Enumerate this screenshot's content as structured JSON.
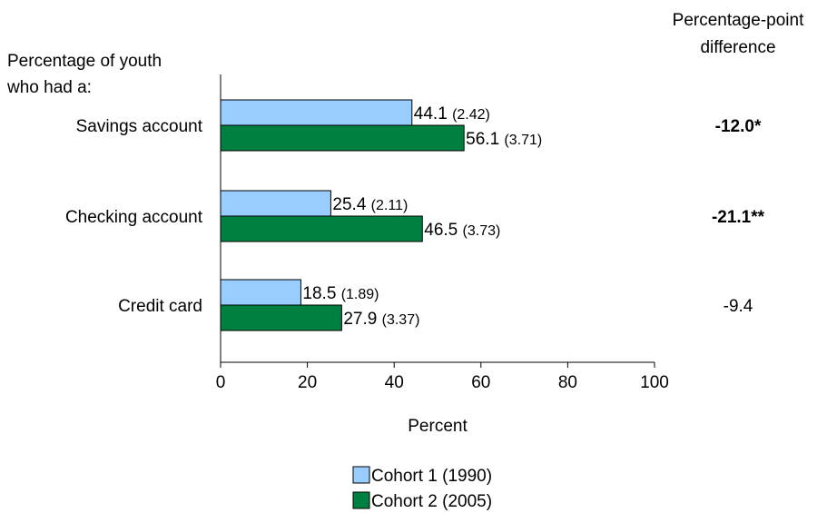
{
  "chart_data": {
    "type": "bar",
    "orientation": "horizontal",
    "categories": [
      "Savings account",
      "Checking account",
      "Credit card"
    ],
    "series": [
      {
        "name": "Cohort 1 (1990)",
        "color": "#99ccff",
        "values": [
          44.1,
          25.4,
          18.5
        ],
        "standard_errors": [
          "(2.42)",
          "(2.11)",
          "(1.89)"
        ]
      },
      {
        "name": "Cohort 2 (2005)",
        "color": "#008040",
        "values": [
          56.1,
          46.5,
          27.9
        ],
        "standard_errors": [
          "(3.71)",
          "(3.73)",
          "(3.37)"
        ]
      }
    ],
    "differences": [
      {
        "label": "-12.0*",
        "bold": true
      },
      {
        "label": "-21.1**",
        "bold": true
      },
      {
        "label": "-9.4",
        "bold": false
      }
    ],
    "xlim": [
      0,
      100
    ],
    "xticks": [
      0,
      20,
      40,
      60,
      80,
      100
    ],
    "xlabel": "Percent",
    "category_header": [
      "Percentage of youth",
      "who had a:"
    ],
    "difference_header": [
      "Percentage-point",
      "difference"
    ],
    "legend_position": "bottom-center",
    "grid": false
  }
}
